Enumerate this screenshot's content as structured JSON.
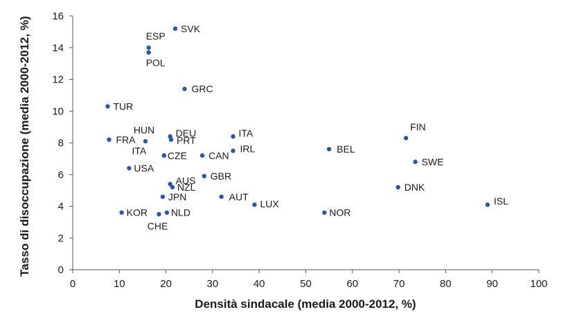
{
  "chart_data": {
    "type": "scatter",
    "xlabel": "Densità sindacale (media 2000-2012, %)",
    "ylabel": "Tasso di disoccupazione (media 2000-2012, %)",
    "xlim": [
      0,
      100
    ],
    "ylim": [
      0,
      16
    ],
    "xticks": [
      0,
      10,
      20,
      30,
      40,
      50,
      60,
      70,
      80,
      90,
      100
    ],
    "yticks": [
      0,
      2,
      4,
      6,
      8,
      10,
      12,
      14,
      16
    ],
    "grid": false,
    "colors": {
      "point": "#2f55a4"
    },
    "points": [
      {
        "label": "SVK",
        "x": 22.0,
        "y": 15.2
      },
      {
        "label": "ESP",
        "x": 16.3,
        "y": 14.0
      },
      {
        "label": "POL",
        "x": 16.3,
        "y": 13.7
      },
      {
        "label": "GRC",
        "x": 24.0,
        "y": 11.4
      },
      {
        "label": "TUR",
        "x": 7.5,
        "y": 10.3
      },
      {
        "label": "HUN",
        "x": 15.6,
        "y": 8.1
      },
      {
        "label": "DEU",
        "x": 20.9,
        "y": 8.4
      },
      {
        "label": "PRT",
        "x": 21.1,
        "y": 8.2
      },
      {
        "label": "FRA",
        "x": 7.8,
        "y": 8.2
      },
      {
        "label": "ITA",
        "x": 34.4,
        "y": 8.4
      },
      {
        "label": "IRL",
        "x": 34.4,
        "y": 7.5
      },
      {
        "label": "FIN",
        "x": 71.5,
        "y": 8.3
      },
      {
        "label": "BEL",
        "x": 55.0,
        "y": 7.6
      },
      {
        "label": "ITA",
        "x": 19.6,
        "y": 7.2
      },
      {
        "label": "CZE",
        "x": 19.6,
        "y": 7.2
      },
      {
        "label": "CAN",
        "x": 27.8,
        "y": 7.2
      },
      {
        "label": "SWE",
        "x": 73.5,
        "y": 6.8
      },
      {
        "label": "USA",
        "x": 12.1,
        "y": 6.4
      },
      {
        "label": "GBR",
        "x": 28.2,
        "y": 5.9
      },
      {
        "label": "AUS",
        "x": 20.9,
        "y": 5.4
      },
      {
        "label": "NZL",
        "x": 21.4,
        "y": 5.2
      },
      {
        "label": "DNK",
        "x": 69.8,
        "y": 5.2
      },
      {
        "label": "JPN",
        "x": 19.3,
        "y": 4.6
      },
      {
        "label": "AUT",
        "x": 31.9,
        "y": 4.6
      },
      {
        "label": "LUX",
        "x": 39.0,
        "y": 4.1
      },
      {
        "label": "ISL",
        "x": 89.0,
        "y": 4.1
      },
      {
        "label": "KOR",
        "x": 10.5,
        "y": 3.6
      },
      {
        "label": "CHE",
        "x": 18.5,
        "y": 3.5
      },
      {
        "label": "NLD",
        "x": 20.2,
        "y": 3.6
      },
      {
        "label": "NOR",
        "x": 54.0,
        "y": 3.6
      }
    ]
  }
}
